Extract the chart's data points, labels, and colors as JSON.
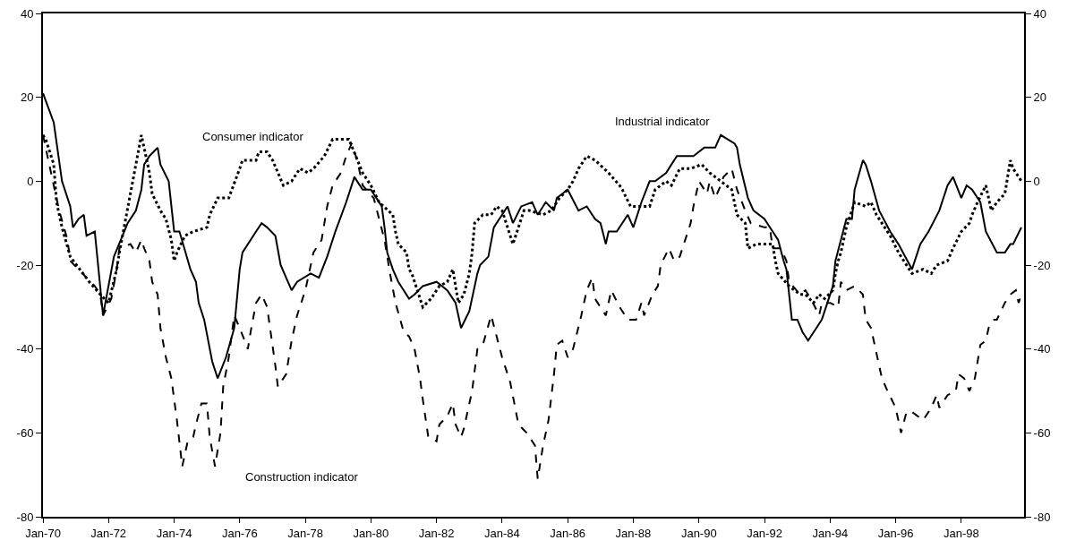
{
  "chart_data": {
    "type": "line",
    "legend": false,
    "xlim": [
      "1970-01",
      "1999-12"
    ],
    "xticks": [
      {
        "value": "1970-01",
        "label": "Jan-70"
      },
      {
        "value": "1972-01",
        "label": "Jan-72"
      },
      {
        "value": "1974-01",
        "label": "Jan-74"
      },
      {
        "value": "1976-01",
        "label": "Jan-76"
      },
      {
        "value": "1978-01",
        "label": "Jan-78"
      },
      {
        "value": "1980-01",
        "label": "Jan-80"
      },
      {
        "value": "1982-01",
        "label": "Jan-82"
      },
      {
        "value": "1984-01",
        "label": "Jan-84"
      },
      {
        "value": "1986-01",
        "label": "Jan-86"
      },
      {
        "value": "1988-01",
        "label": "Jan-88"
      },
      {
        "value": "1990-01",
        "label": "Jan-90"
      },
      {
        "value": "1992-01",
        "label": "Jan-92"
      },
      {
        "value": "1994-01",
        "label": "Jan-94"
      },
      {
        "value": "1996-01",
        "label": "Jan-96"
      },
      {
        "value": "1998-01",
        "label": "Jan-98"
      }
    ],
    "ylim": [
      -80,
      40
    ],
    "yticks": [
      -80,
      -60,
      -40,
      -20,
      0,
      20,
      40
    ],
    "y2lim": [
      -80,
      40
    ],
    "y2ticks": [
      -80,
      -60,
      -40,
      -20,
      0,
      20,
      40
    ],
    "series": [
      {
        "name": "Industrial indicator",
        "color": "#000000",
        "line_style": "solid",
        "x": [
          "1970-01",
          "1970-05",
          "1970-08",
          "1970-11",
          "1970-12",
          "1971-02",
          "1971-04",
          "1971-05",
          "1971-08",
          "1971-11",
          "1972-03",
          "1972-08",
          "1972-11",
          "1973-01",
          "1973-02",
          "1973-04",
          "1973-07",
          "1973-08",
          "1973-11",
          "1974-01",
          "1974-03",
          "1974-07",
          "1974-09",
          "1974-10",
          "1974-12",
          "1975-03",
          "1975-05",
          "1975-08",
          "1975-11",
          "1976-01",
          "1976-02",
          "1976-07",
          "1976-09",
          "1976-11",
          "1977-02",
          "1977-04",
          "1977-08",
          "1977-10",
          "1978-03",
          "1978-06",
          "1978-09",
          "1978-12",
          "1979-04",
          "1979-07",
          "1979-08",
          "1979-10",
          "1980-01",
          "1980-05",
          "1980-06",
          "1980-07",
          "1980-09",
          "1980-11",
          "1981-03",
          "1981-05",
          "1981-08",
          "1982-01",
          "1982-05",
          "1982-08",
          "1982-10",
          "1983-01",
          "1983-04",
          "1983-05",
          "1983-08",
          "1983-10",
          "1984-01",
          "1984-03",
          "1984-05",
          "1984-08",
          "1984-12",
          "1985-02",
          "1985-05",
          "1985-08",
          "1985-09",
          "1986-01",
          "1986-05",
          "1986-08",
          "1986-11",
          "1987-01",
          "1987-03",
          "1987-04",
          "1987-07",
          "1987-11",
          "1988-01",
          "1988-04",
          "1988-07",
          "1988-09",
          "1989-01",
          "1989-03",
          "1989-05",
          "1989-07",
          "1989-11",
          "1990-01",
          "1990-03",
          "1990-07",
          "1990-09",
          "1991-02",
          "1991-03",
          "1991-04",
          "1991-07",
          "1991-09",
          "1992-01",
          "1992-04",
          "1992-06",
          "1992-08",
          "1992-09",
          "1992-11",
          "1993-01",
          "1993-03",
          "1993-05",
          "1993-08",
          "1993-10",
          "1994-02",
          "1994-03",
          "1994-07",
          "1994-09",
          "1994-10",
          "1995-01",
          "1995-02",
          "1995-04",
          "1995-07",
          "1995-11",
          "1996-02",
          "1996-07",
          "1996-10",
          "1997-01",
          "1997-05",
          "1997-08",
          "1997-10",
          "1998-01",
          "1998-03",
          "1998-05",
          "1998-08",
          "1998-10",
          "1999-02",
          "1999-05",
          "1999-07",
          "1999-08",
          "1999-11"
        ],
        "values": [
          21,
          14,
          0,
          -6,
          -11,
          -9,
          -8,
          -13,
          -12,
          -32,
          -18,
          -10,
          -7,
          -2,
          4,
          6,
          8,
          4,
          0,
          -12,
          -12,
          -21,
          -24,
          -29,
          -33,
          -43,
          -47,
          -42,
          -35,
          -21,
          -17,
          -12,
          -10,
          -11,
          -13,
          -20,
          -26,
          -24,
          -22,
          -23,
          -18,
          -12,
          -5,
          1,
          0,
          -2,
          -2,
          -6,
          -11,
          -17,
          -21,
          -24,
          -28,
          -27,
          -25,
          -24,
          -26,
          -29,
          -35,
          -31,
          -22,
          -20,
          -18,
          -11,
          -8,
          -6,
          -10,
          -6,
          -5,
          -8,
          -5,
          -7,
          -4,
          -2,
          -7,
          -6,
          -9,
          -10,
          -15,
          -12,
          -12,
          -8,
          -11,
          -5,
          0,
          0,
          2,
          4,
          6,
          6,
          6,
          7,
          8,
          8,
          11,
          9,
          8,
          4,
          -4,
          -7,
          -9,
          -12,
          -14,
          -19,
          -21,
          -33,
          -33,
          -36,
          -38,
          -35,
          -33,
          -25,
          -19,
          -9,
          -9,
          -2,
          5,
          4,
          0,
          -7,
          -12,
          -15,
          -21,
          -15,
          -12,
          -7,
          -1,
          1,
          -4,
          -1,
          -2,
          -5,
          -12,
          -17,
          -17,
          -15,
          -15,
          -11
        ]
      },
      {
        "name": "Consumer indicator",
        "color": "#000000",
        "line_style": "dotted",
        "x": [
          "1970-01",
          "1970-02",
          "1970-05",
          "1970-06",
          "1970-08",
          "1970-11",
          "1971-06",
          "1971-10",
          "1972-01",
          "1972-04",
          "1972-05",
          "1973-01",
          "1973-04",
          "1973-05",
          "1973-08",
          "1973-10",
          "1973-12",
          "1974-01",
          "1974-02",
          "1974-05",
          "1974-08",
          "1975-01",
          "1975-02",
          "1975-05",
          "1975-09",
          "1976-01",
          "1976-02",
          "1976-07",
          "1976-08",
          "1976-11",
          "1977-01",
          "1977-05",
          "1977-08",
          "1977-11",
          "1978-02",
          "1978-04",
          "1978-08",
          "1978-11",
          "1979-04",
          "1979-05",
          "1979-10",
          "1980-01",
          "1980-04",
          "1980-09",
          "1980-10",
          "1980-11",
          "1981-02",
          "1981-03",
          "1981-04",
          "1981-08",
          "1981-11",
          "1982-02",
          "1982-05",
          "1982-07",
          "1982-09",
          "1982-11",
          "1983-01",
          "1983-02",
          "1983-03",
          "1983-06",
          "1983-09",
          "1983-11",
          "1984-01",
          "1984-05",
          "1984-07",
          "1984-09",
          "1984-11",
          "1985-04",
          "1985-07",
          "1985-10",
          "1986-01",
          "1986-03",
          "1986-05",
          "1986-08",
          "1986-11",
          "1987-04",
          "1987-08",
          "1987-09",
          "1987-12",
          "1988-04",
          "1988-07",
          "1988-09",
          "1989-01",
          "1989-03",
          "1989-06",
          "1989-10",
          "1990-02",
          "1990-05",
          "1990-09",
          "1991-01",
          "1991-03",
          "1991-06",
          "1991-07",
          "1991-10",
          "1992-01",
          "1992-04",
          "1992-05",
          "1992-06",
          "1992-10",
          "1993-02",
          "1993-04",
          "1993-07",
          "1993-09",
          "1993-11",
          "1994-02",
          "1994-03",
          "1994-04",
          "1994-05",
          "1994-07",
          "1994-10",
          "1995-02",
          "1995-04",
          "1995-06",
          "1995-11",
          "1996-02",
          "1996-05",
          "1996-07",
          "1996-11",
          "1997-02",
          "1997-04",
          "1997-08",
          "1997-10",
          "1998-01",
          "1998-04",
          "1998-05",
          "1998-07",
          "1998-10",
          "1998-12",
          "1999-02",
          "1999-05",
          "1999-07",
          "1999-08",
          "1999-11"
        ],
        "values": [
          11,
          10,
          4,
          -5,
          -11,
          -18,
          -24,
          -27,
          -29,
          -21,
          -17,
          11,
          2,
          -3,
          -7,
          -9,
          -14,
          -19,
          -17,
          -13,
          -12,
          -11,
          -8,
          -4,
          -4,
          3,
          5,
          5,
          7,
          7,
          5,
          -1,
          0,
          3,
          2,
          3,
          6,
          10,
          10,
          10,
          2,
          -1,
          -5,
          -8,
          -12,
          -15,
          -17,
          -21,
          -22,
          -30,
          -28,
          -25,
          -24,
          -21,
          -29,
          -27,
          -22,
          -17,
          -10,
          -8,
          -8,
          -6,
          -7,
          -15,
          -11,
          -7,
          -7,
          -8,
          -7,
          -4,
          -2,
          0,
          3,
          6,
          5,
          2,
          -1,
          -2,
          -6,
          -6,
          -6,
          -2,
          0,
          -1,
          3,
          3,
          4,
          2,
          0,
          -2,
          -8,
          -10,
          -16,
          -15,
          -15,
          -15,
          -19,
          -22,
          -25,
          -27,
          -27,
          -29,
          -27,
          -28,
          -26,
          -22,
          -19,
          -17,
          -11,
          -5,
          -6,
          -5,
          -8,
          -13,
          -17,
          -20,
          -22,
          -21,
          -22,
          -20,
          -19,
          -16,
          -12,
          -10,
          -8,
          -5,
          -1,
          -7,
          -5,
          -3,
          5,
          3,
          0
        ]
      },
      {
        "name": "Construction indicator",
        "color": "#000000",
        "line_style": "dashed",
        "x": [
          "1970-01",
          "1970-05",
          "1970-07",
          "1970-10",
          "1970-11",
          "1971-08",
          "1971-10",
          "1971-11",
          "1972-02",
          "1972-04",
          "1972-05",
          "1972-09",
          "1972-11",
          "1973-01",
          "1973-02",
          "1973-04",
          "1973-05",
          "1973-07",
          "1973-08",
          "1973-10",
          "1973-12",
          "1974-02",
          "1974-04",
          "1974-06",
          "1974-08",
          "1974-09",
          "1974-11",
          "1975-01",
          "1975-02",
          "1975-04",
          "1975-06",
          "1975-07",
          "1975-09",
          "1975-11",
          "1976-01",
          "1976-04",
          "1976-05",
          "1976-07",
          "1976-09",
          "1976-11",
          "1977-02",
          "1977-03",
          "1977-06",
          "1977-08",
          "1977-10",
          "1978-01",
          "1978-04",
          "1978-07",
          "1978-09",
          "1978-11",
          "1979-02",
          "1979-04",
          "1979-06",
          "1979-08",
          "1979-10",
          "1980-02",
          "1980-06",
          "1980-08",
          "1980-10",
          "1981-01",
          "1981-03",
          "1981-05",
          "1981-07",
          "1981-08",
          "1981-10",
          "1982-01",
          "1982-02",
          "1982-05",
          "1982-07",
          "1982-08",
          "1982-10",
          "1982-11",
          "1983-02",
          "1983-04",
          "1983-06",
          "1983-09",
          "1983-11",
          "1984-01",
          "1984-04",
          "1984-07",
          "1984-10",
          "1985-01",
          "1985-02",
          "1985-04",
          "1985-06",
          "1985-08",
          "1985-09",
          "1985-11",
          "1986-01",
          "1986-03",
          "1986-06",
          "1986-08",
          "1986-10",
          "1986-11",
          "1987-03",
          "1987-05",
          "1987-08",
          "1987-11",
          "1988-02",
          "1988-04",
          "1988-05",
          "1988-08",
          "1988-10",
          "1988-11",
          "1989-02",
          "1989-04",
          "1989-06",
          "1989-08",
          "1989-10",
          "1989-11",
          "1990-01",
          "1990-04",
          "1990-05",
          "1990-07",
          "1990-09",
          "1990-10",
          "1991-01",
          "1991-03",
          "1991-06",
          "1991-08",
          "1992-01",
          "1992-03",
          "1992-04",
          "1992-07",
          "1992-09",
          "1992-10",
          "1993-02",
          "1993-04",
          "1993-06",
          "1993-09",
          "1993-10",
          "1994-01",
          "1994-04",
          "1994-05",
          "1994-07",
          "1994-10",
          "1995-01",
          "1995-02",
          "1995-04",
          "1995-06",
          "1995-08",
          "1995-10",
          "1996-01",
          "1996-03",
          "1996-05",
          "1996-07",
          "1996-11",
          "1997-02",
          "1997-04",
          "1997-05",
          "1997-08",
          "1997-11",
          "1997-12",
          "1998-02",
          "1998-04",
          "1998-06",
          "1998-08",
          "1998-10",
          "1998-11",
          "1999-01",
          "1999-02",
          "1999-05",
          "1999-07",
          "1999-09",
          "1999-10",
          "1999-11"
        ],
        "values": [
          11,
          -1,
          -7,
          -14,
          -19,
          -25,
          -27,
          -32,
          -28,
          -21,
          -16,
          -15,
          -17,
          -14,
          -16,
          -19,
          -24,
          -27,
          -35,
          -42,
          -47,
          -57,
          -68,
          -62,
          -61,
          -58,
          -53,
          -53,
          -61,
          -68,
          -60,
          -49,
          -42,
          -32,
          -35,
          -40,
          -36,
          -29,
          -27,
          -30,
          -44,
          -49,
          -46,
          -38,
          -32,
          -26,
          -17,
          -14,
          -6,
          -1,
          2,
          6,
          9,
          5,
          -1,
          -4,
          -14,
          -22,
          -29,
          -36,
          -37,
          -40,
          -47,
          -52,
          -61,
          -62,
          -58,
          -56,
          -53,
          -58,
          -61,
          -59,
          -50,
          -40,
          -39,
          -32,
          -37,
          -42,
          -48,
          -58,
          -60,
          -63,
          -71,
          -63,
          -57,
          -46,
          -39,
          -38,
          -42,
          -40,
          -32,
          -26,
          -23,
          -28,
          -32,
          -26,
          -30,
          -33,
          -33,
          -29,
          -32,
          -27,
          -25,
          -20,
          -16,
          -19,
          -18,
          -14,
          -10,
          -6,
          0,
          -3,
          0,
          -4,
          -1,
          1,
          3,
          -2,
          -7,
          -10,
          -11,
          -11,
          -16,
          -16,
          -19,
          -24,
          -27,
          -26,
          -28,
          -32,
          -29,
          -29,
          -30,
          -24,
          -26,
          -25,
          -27,
          -33,
          -35,
          -41,
          -47,
          -50,
          -54,
          -60,
          -55,
          -55,
          -57,
          -54,
          -51,
          -54,
          -51,
          -50,
          -46,
          -47,
          -50,
          -47,
          -39,
          -38,
          -35,
          -33,
          -33,
          -29,
          -27,
          -26,
          -29,
          -27
        ]
      }
    ]
  }
}
